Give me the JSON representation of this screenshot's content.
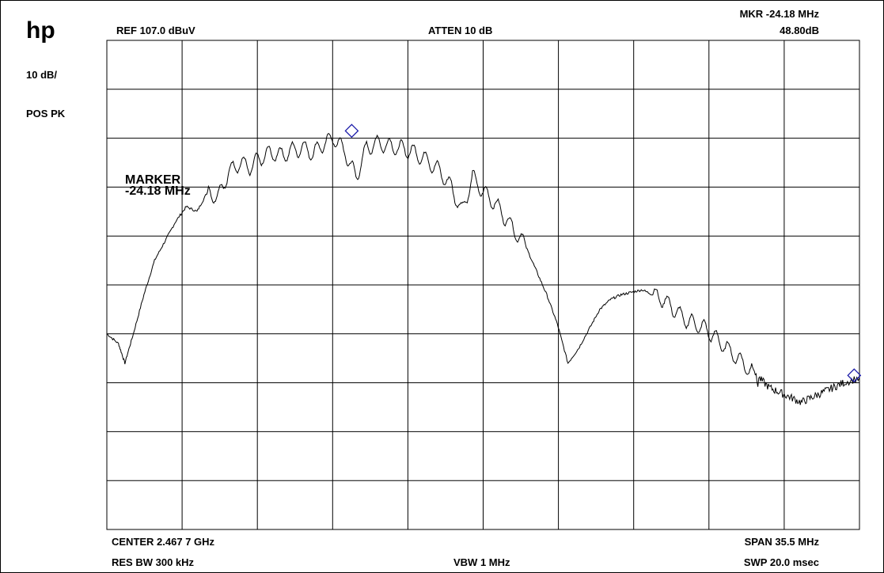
{
  "brand": "hp",
  "header": {
    "ref": "REF  107.0 dBuV",
    "atten": "ATTEN 10 dB",
    "marker_freq": "MKR  -24.18 MHz",
    "marker_level": "48.80dB"
  },
  "left": {
    "scale": "10 dB/",
    "detector": "POS PK"
  },
  "footer": {
    "center": "CENTER 2.467 7 GHz",
    "span": "SPAN 35.5 MHz",
    "res_bw": "RES BW 300 kHz",
    "vbw": "VBW 1 MHz",
    "sweep": "SWP 20.0 msec"
  },
  "annotation": {
    "line1": "MARKER",
    "line2": "-24.18 MHz"
  },
  "colors": {
    "trace": "#000000",
    "grid": "#000000",
    "marker": "#1a1aa8"
  },
  "chart_data": {
    "type": "line",
    "title": "",
    "xlabel": "",
    "ylabel": "",
    "x_unit": "MHz offset from center",
    "xlim": [
      -17.75,
      17.75
    ],
    "ylim": [
      7.0,
      107.0
    ],
    "grid": true,
    "divisions": {
      "x": 10,
      "y": 10
    },
    "series": [
      {
        "values_x": [
          -17.75,
          -17.2,
          -16.9,
          -16.5,
          -16.0,
          -15.5,
          -15.0,
          -14.5,
          -14.0,
          -13.5,
          -13.0,
          -12.5,
          -12.0,
          -11.5,
          -11.0,
          -10.5,
          -10.0,
          -9.5,
          -9.0,
          -8.5,
          -8.0,
          -7.5,
          -7.0,
          -6.5,
          -6.0,
          -5.5,
          -5.0,
          -4.5,
          -4.0,
          -3.5,
          -3.0,
          -2.5,
          -2.0,
          -1.5,
          -1.0,
          -0.5,
          0.0,
          0.5,
          1.0,
          1.5,
          2.0,
          2.5,
          3.0,
          3.5,
          4.0,
          4.5,
          5.0,
          5.5,
          6.0,
          6.5,
          7.0,
          7.5,
          8.0,
          8.5,
          9.0,
          9.5,
          10.0,
          10.5,
          11.0,
          11.5,
          12.0,
          12.5,
          13.0,
          13.5,
          14.0,
          14.5,
          15.0,
          15.5,
          16.0,
          16.5,
          17.0,
          17.75
        ],
        "values_y": [
          47.0,
          45.0,
          41.0,
          47.0,
          55.0,
          62.0,
          66.0,
          70.0,
          73.0,
          72.0,
          76.0,
          75.0,
          80.0,
          82.0,
          81.0,
          83.0,
          84.0,
          83.5,
          84.5,
          85.0,
          84.0,
          86.0,
          87.0,
          84.0,
          79.0,
          85.0,
          86.0,
          85.5,
          85.0,
          84.5,
          83.5,
          82.0,
          80.0,
          77.0,
          72.0,
          79.0,
          76.0,
          74.0,
          71.0,
          68.0,
          65.0,
          60.0,
          55.0,
          49.0,
          41.0,
          44.0,
          48.0,
          52.0,
          54.0,
          55.0,
          55.5,
          56.0,
          55.0,
          54.0,
          52.0,
          50.0,
          49.0,
          48.0,
          46.0,
          44.0,
          42.0,
          40.0,
          38.0,
          36.0,
          35.0,
          34.0,
          33.0,
          34.0,
          35.0,
          36.0,
          37.0,
          38.0
        ]
      }
    ],
    "markers": [
      {
        "x": -6.2,
        "y": 88.5
      },
      {
        "x": 17.5,
        "y": 38.5
      }
    ]
  }
}
